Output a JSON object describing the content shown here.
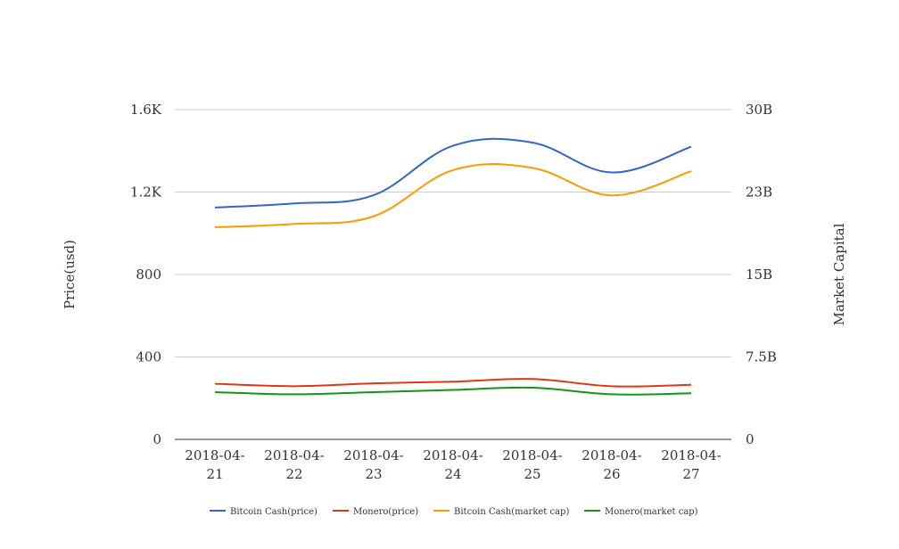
{
  "chart_data": {
    "type": "line",
    "title": "",
    "categories": [
      "2018-04-21",
      "2018-04-22",
      "2018-04-23",
      "2018-04-24",
      "2018-04-25",
      "2018-04-26",
      "2018-04-27"
    ],
    "x_tick_lines": [
      [
        "2018-04-",
        "21"
      ],
      [
        "2018-04-",
        "22"
      ],
      [
        "2018-04-",
        "23"
      ],
      [
        "2018-04-",
        "24"
      ],
      [
        "2018-04-",
        "25"
      ],
      [
        "2018-04-",
        "26"
      ],
      [
        "2018-04-",
        "27"
      ]
    ],
    "y_left": {
      "label": "Price(usd)",
      "range": [
        0,
        1600
      ],
      "ticks": [
        0,
        400,
        800,
        1200,
        1600
      ],
      "tick_labels": [
        "0",
        "400",
        "800",
        "1.2K",
        "1.6K"
      ]
    },
    "y_right": {
      "label": "Market Capital",
      "range": [
        0,
        30000000000
      ],
      "ticks": [
        0,
        7500000000,
        15000000000,
        22500000000,
        30000000000
      ],
      "tick_labels": [
        "0",
        "7.5B",
        "15B",
        "23B",
        "30B"
      ]
    },
    "grid": true,
    "legend_position": "bottom",
    "series": [
      {
        "name": "Bitcoin Cash(price)",
        "axis": "left",
        "color": "#3366cc",
        "values": [
          1125,
          1145,
          1185,
          1425,
          1440,
          1295,
          1420
        ]
      },
      {
        "name": "Monero(price)",
        "axis": "left",
        "color": "#dc3912",
        "values": [
          270,
          258,
          272,
          280,
          293,
          258,
          265
        ]
      },
      {
        "name": "Bitcoin Cash(market cap)",
        "axis": "right",
        "color": "#ff9900",
        "values": [
          19300000000,
          19600000000,
          20300000000,
          24500000000,
          24700000000,
          22200000000,
          24400000000
        ]
      },
      {
        "name": "Monero(market cap)",
        "axis": "right",
        "color": "#109618",
        "values": [
          4300000000,
          4100000000,
          4300000000,
          4500000000,
          4700000000,
          4100000000,
          4200000000
        ]
      }
    ]
  }
}
